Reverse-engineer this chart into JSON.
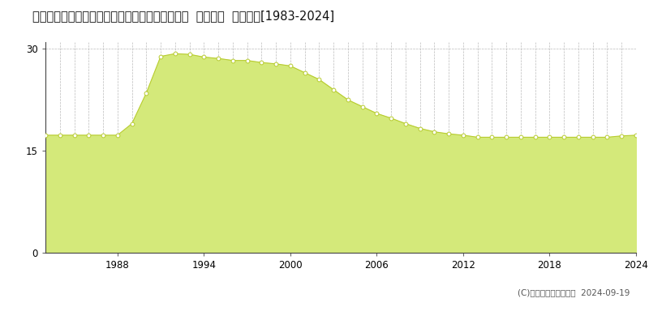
{
  "title": "愛知県知多郡東浦町大字緒川字肥後原１番２１０  公示地価  地価推移[1983-2024]",
  "years": [
    1983,
    1984,
    1985,
    1986,
    1987,
    1988,
    1989,
    1990,
    1991,
    1992,
    1993,
    1994,
    1995,
    1996,
    1997,
    1998,
    1999,
    2000,
    2001,
    2002,
    2003,
    2004,
    2005,
    2006,
    2007,
    2008,
    2009,
    2010,
    2011,
    2012,
    2013,
    2014,
    2015,
    2016,
    2017,
    2018,
    2019,
    2020,
    2021,
    2022,
    2023,
    2024
  ],
  "values": [
    17.3,
    17.3,
    17.3,
    17.3,
    17.3,
    17.3,
    19.0,
    23.5,
    28.9,
    29.3,
    29.2,
    28.8,
    28.6,
    28.3,
    28.3,
    28.0,
    27.8,
    27.5,
    26.5,
    25.5,
    24.0,
    22.5,
    21.5,
    20.5,
    19.8,
    19.0,
    18.3,
    17.8,
    17.5,
    17.3,
    17.0,
    17.0,
    17.0,
    17.0,
    17.0,
    17.0,
    17.0,
    17.0,
    17.0,
    17.0,
    17.2,
    17.3
  ],
  "fill_color": "#d4e97a",
  "line_color": "#b8cc30",
  "marker_facecolor": "#ffffff",
  "marker_edgecolor": "#b8cc30",
  "background_color": "#ffffff",
  "grid_color": "#bbbbbb",
  "ylim": [
    0,
    31
  ],
  "yticks": [
    0,
    15,
    30
  ],
  "xtick_years": [
    1988,
    1994,
    2000,
    2006,
    2012,
    2018,
    2024
  ],
  "copyright": "(C)土地価格ドットコム  2024-09-19",
  "title_fontsize": 10.5,
  "tick_fontsize": 8.5,
  "legend_fontsize": 8.5,
  "copyright_fontsize": 7.5
}
